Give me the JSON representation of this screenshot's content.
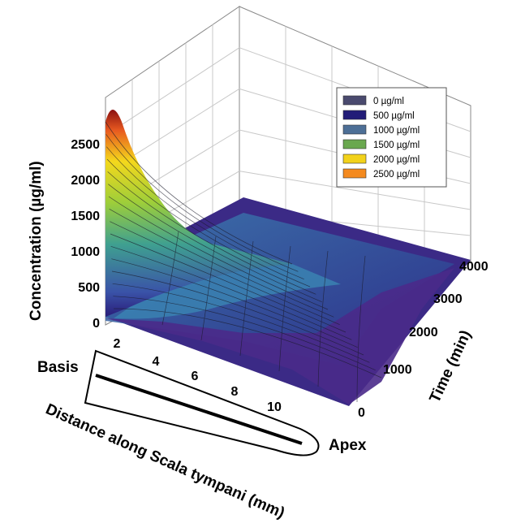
{
  "chart_data": {
    "type": "surface3d",
    "xlabel": "Distance along Scala tympani (mm)",
    "ylabel": "Time (min)",
    "zlabel": "Concentration (µg/ml)",
    "x_ticks": [
      "2",
      "4",
      "6",
      "8",
      "10"
    ],
    "y_ticks": [
      "0",
      "1000",
      "2000",
      "3000",
      "4000"
    ],
    "z_ticks": [
      "0",
      "500",
      "1000",
      "1500",
      "2000",
      "2500"
    ],
    "xlim": [
      1,
      12
    ],
    "ylim": [
      0,
      4000
    ],
    "zlim": [
      0,
      3000
    ],
    "grid": true,
    "legend_position": "top-right",
    "legend": [
      {
        "label": "0 µg/ml",
        "color": "#4a4a6e"
      },
      {
        "label": "500 µg/ml",
        "color": "#221c78"
      },
      {
        "label": "1000 µg/ml",
        "color": "#4d6f96"
      },
      {
        "label": "1500 µg/ml",
        "color": "#6aa84f"
      },
      {
        "label": "2000 µg/ml",
        "color": "#f2d21b"
      },
      {
        "label": "2500 µg/ml",
        "color": "#f48a1f"
      }
    ],
    "peak": {
      "x_mm": 1,
      "time_min": 4000,
      "concentration": 2800
    },
    "cochlea_labels": {
      "base": "Basis",
      "apex": "Apex"
    }
  }
}
